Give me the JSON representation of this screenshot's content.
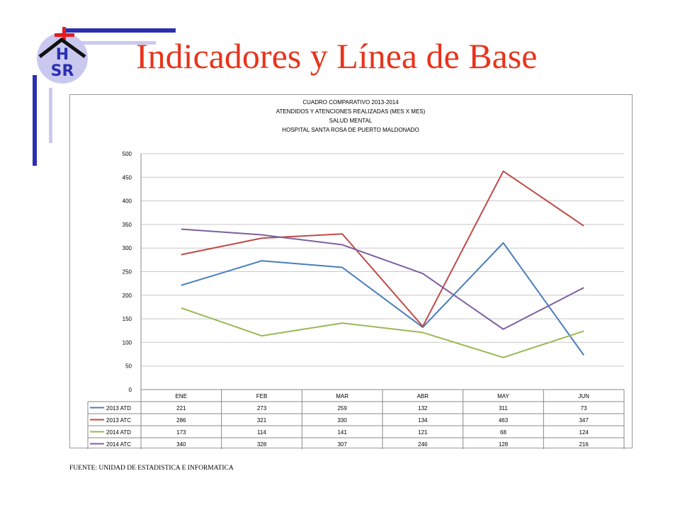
{
  "slide": {
    "title": "Indicadores y Línea de Base",
    "logo_text": {
      "line1": "H",
      "line2": "SR"
    },
    "source": "FUENTE: UNIDAD DE ESTADISTICA E INFORMATICA"
  },
  "colors": {
    "title": "#e8341c",
    "logo_blue": "#2b2fb0",
    "logo_red": "#e31d1d",
    "logo_lavender": "#c9c9f0",
    "grid": "#c8c8c8"
  },
  "chart_data": {
    "type": "line",
    "title_lines": [
      "CUADRO COMPARATIVO 2013-2014",
      "ATENDIDOS Y ATENCIONES REALIZADAS (MES X MES)",
      "SALUD MENTAL",
      "HOSPITAL SANTA ROSA DE PUERTO MALDONADO"
    ],
    "categories": [
      "ENE",
      "FEB",
      "MAR",
      "ABR",
      "MAY",
      "JUN"
    ],
    "ylim": [
      0,
      500
    ],
    "yticks": [
      0,
      50,
      100,
      150,
      200,
      250,
      300,
      350,
      400,
      450,
      500
    ],
    "grid": true,
    "legend": "data-table-below",
    "series": [
      {
        "name": "2013 ATD",
        "color": "#4a7ebb",
        "values": [
          221,
          273,
          259,
          132,
          311,
          73
        ]
      },
      {
        "name": "2013 ATC",
        "color": "#be4b48",
        "values": [
          286,
          321,
          330,
          134,
          463,
          347
        ]
      },
      {
        "name": "2014 ATD",
        "color": "#98b954",
        "values": [
          173,
          114,
          141,
          121,
          68,
          124
        ]
      },
      {
        "name": "2014 ATC",
        "color": "#7d60a0",
        "values": [
          340,
          328,
          307,
          246,
          128,
          216
        ]
      }
    ]
  }
}
